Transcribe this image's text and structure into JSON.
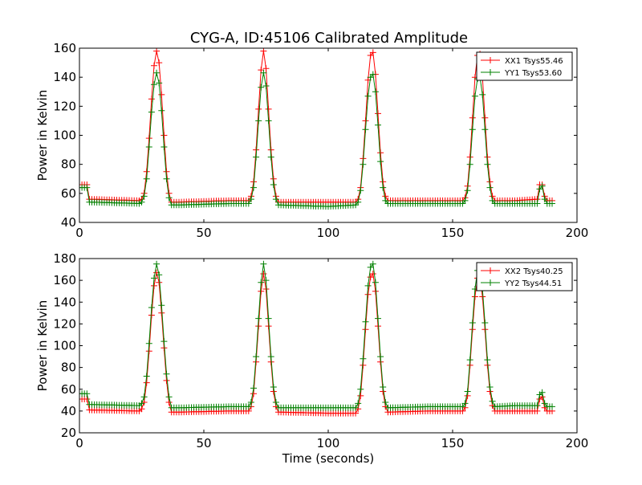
{
  "figure": {
    "title": "CYG-A, ID:45106 Calibrated Amplitude"
  },
  "chart_data": [
    {
      "type": "line",
      "title": "CYG-A, ID:45106 Calibrated Amplitude",
      "xlabel": "",
      "ylabel": "Power in Kelvin",
      "xlim": [
        0,
        200
      ],
      "ylim": [
        40,
        160
      ],
      "xticks": [
        0,
        50,
        100,
        150,
        200
      ],
      "yticks": [
        40,
        60,
        80,
        100,
        120,
        140,
        160
      ],
      "grid": false,
      "legend_position": "top-right",
      "marker": "+",
      "x_range": [
        0,
        190
      ],
      "x_step": 1,
      "series": [
        {
          "name": "XX1 Tsys55.46",
          "color": "#ff0000",
          "keypoints": [
            [
              0,
              66
            ],
            [
              3,
              66
            ],
            [
              4,
              56
            ],
            [
              24,
              55
            ],
            [
              25,
              56
            ],
            [
              26,
              60
            ],
            [
              27,
              75
            ],
            [
              28,
              98
            ],
            [
              29,
              125
            ],
            [
              30,
              148
            ],
            [
              31,
              158
            ],
            [
              32,
              150
            ],
            [
              33,
              128
            ],
            [
              34,
              100
            ],
            [
              35,
              75
            ],
            [
              36,
              60
            ],
            [
              37,
              54
            ],
            [
              40,
              54
            ],
            [
              60,
              55
            ],
            [
              68,
              55
            ],
            [
              69,
              58
            ],
            [
              70,
              68
            ],
            [
              71,
              90
            ],
            [
              72,
              118
            ],
            [
              73,
              145
            ],
            [
              74,
              158
            ],
            [
              75,
              146
            ],
            [
              76,
              118
            ],
            [
              77,
              90
            ],
            [
              78,
              70
            ],
            [
              79,
              58
            ],
            [
              80,
              54
            ],
            [
              100,
              54
            ],
            [
              111,
              54
            ],
            [
              112,
              56
            ],
            [
              113,
              64
            ],
            [
              114,
              84
            ],
            [
              115,
              110
            ],
            [
              116,
              138
            ],
            [
              117,
              155
            ],
            [
              118,
              157
            ],
            [
              119,
              142
            ],
            [
              120,
              115
            ],
            [
              121,
              88
            ],
            [
              122,
              68
            ],
            [
              123,
              58
            ],
            [
              124,
              55
            ],
            [
              140,
              55
            ],
            [
              154,
              55
            ],
            [
              155,
              57
            ],
            [
              156,
              65
            ],
            [
              157,
              85
            ],
            [
              158,
              112
            ],
            [
              159,
              140
            ],
            [
              160,
              155
            ],
            [
              161,
              156
            ],
            [
              162,
              140
            ],
            [
              163,
              112
            ],
            [
              164,
              85
            ],
            [
              165,
              68
            ],
            [
              166,
              58
            ],
            [
              167,
              55
            ],
            [
              175,
              55
            ],
            [
              184,
              56
            ],
            [
              185,
              66
            ],
            [
              186,
              66
            ],
            [
              187,
              58
            ],
            [
              188,
              55
            ],
            [
              190,
              55
            ]
          ]
        },
        {
          "name": "YY1 Tsys53.60",
          "color": "#008000",
          "keypoints": [
            [
              0,
              64
            ],
            [
              3,
              64
            ],
            [
              4,
              54
            ],
            [
              24,
              53
            ],
            [
              25,
              54
            ],
            [
              26,
              58
            ],
            [
              27,
              70
            ],
            [
              28,
              92
            ],
            [
              29,
              116
            ],
            [
              30,
              135
            ],
            [
              31,
              143
            ],
            [
              32,
              136
            ],
            [
              33,
              117
            ],
            [
              34,
              92
            ],
            [
              35,
              70
            ],
            [
              36,
              57
            ],
            [
              37,
              52
            ],
            [
              40,
              52
            ],
            [
              60,
              53
            ],
            [
              68,
              53
            ],
            [
              69,
              56
            ],
            [
              70,
              64
            ],
            [
              71,
              85
            ],
            [
              72,
              110
            ],
            [
              73,
              133
            ],
            [
              74,
              143
            ],
            [
              75,
              134
            ],
            [
              76,
              110
            ],
            [
              77,
              85
            ],
            [
              78,
              66
            ],
            [
              79,
              56
            ],
            [
              80,
              52
            ],
            [
              100,
              51
            ],
            [
              111,
              52
            ],
            [
              112,
              54
            ],
            [
              113,
              62
            ],
            [
              114,
              80
            ],
            [
              115,
              104
            ],
            [
              116,
              127
            ],
            [
              117,
              140
            ],
            [
              118,
              142
            ],
            [
              119,
              130
            ],
            [
              120,
              107
            ],
            [
              121,
              82
            ],
            [
              122,
              64
            ],
            [
              123,
              55
            ],
            [
              124,
              53
            ],
            [
              140,
              53
            ],
            [
              154,
              53
            ],
            [
              155,
              55
            ],
            [
              156,
              62
            ],
            [
              157,
              80
            ],
            [
              158,
              104
            ],
            [
              159,
              127
            ],
            [
              160,
              139
            ],
            [
              161,
              140
            ],
            [
              162,
              128
            ],
            [
              163,
              104
            ],
            [
              164,
              80
            ],
            [
              165,
              64
            ],
            [
              166,
              55
            ],
            [
              167,
              53
            ],
            [
              175,
              53
            ],
            [
              184,
              53
            ],
            [
              185,
              63
            ],
            [
              186,
              65
            ],
            [
              187,
              56
            ],
            [
              188,
              53
            ],
            [
              190,
              53
            ]
          ]
        }
      ]
    },
    {
      "type": "line",
      "title": "",
      "xlabel": "Time (seconds)",
      "ylabel": "Power in Kelvin",
      "xlim": [
        0,
        200
      ],
      "ylim": [
        20,
        180
      ],
      "xticks": [
        0,
        50,
        100,
        150,
        200
      ],
      "yticks": [
        20,
        40,
        60,
        80,
        100,
        120,
        140,
        160,
        180
      ],
      "grid": false,
      "legend_position": "top-right",
      "marker": "+",
      "x_range": [
        0,
        190
      ],
      "x_step": 1,
      "series": [
        {
          "name": "XX2 Tsys40.25",
          "color": "#ff0000",
          "keypoints": [
            [
              0,
              51
            ],
            [
              3,
              51
            ],
            [
              4,
              41
            ],
            [
              24,
              40
            ],
            [
              25,
              42
            ],
            [
              26,
              48
            ],
            [
              27,
              66
            ],
            [
              28,
              95
            ],
            [
              29,
              128
            ],
            [
              30,
              155
            ],
            [
              31,
              167
            ],
            [
              32,
              158
            ],
            [
              33,
              130
            ],
            [
              34,
              98
            ],
            [
              35,
              68
            ],
            [
              36,
              48
            ],
            [
              37,
              39
            ],
            [
              40,
              39
            ],
            [
              60,
              40
            ],
            [
              68,
              40
            ],
            [
              69,
              44
            ],
            [
              70,
              56
            ],
            [
              71,
              85
            ],
            [
              72,
              118
            ],
            [
              73,
              150
            ],
            [
              74,
              166
            ],
            [
              75,
              152
            ],
            [
              76,
              118
            ],
            [
              77,
              85
            ],
            [
              78,
              58
            ],
            [
              79,
              44
            ],
            [
              80,
              39
            ],
            [
              100,
              38
            ],
            [
              111,
              38
            ],
            [
              112,
              42
            ],
            [
              113,
              54
            ],
            [
              114,
              82
            ],
            [
              115,
              115
            ],
            [
              116,
              147
            ],
            [
              117,
              163
            ],
            [
              118,
              166
            ],
            [
              119,
              150
            ],
            [
              120,
              118
            ],
            [
              121,
              85
            ],
            [
              122,
              58
            ],
            [
              123,
              44
            ],
            [
              124,
              39
            ],
            [
              140,
              40
            ],
            [
              154,
              40
            ],
            [
              155,
              43
            ],
            [
              156,
              54
            ],
            [
              157,
              82
            ],
            [
              158,
              115
            ],
            [
              159,
              145
            ],
            [
              160,
              162
            ],
            [
              161,
              162
            ],
            [
              162,
              145
            ],
            [
              163,
              115
            ],
            [
              164,
              82
            ],
            [
              165,
              58
            ],
            [
              166,
              45
            ],
            [
              167,
              40
            ],
            [
              175,
              40
            ],
            [
              184,
              40
            ],
            [
              185,
              51
            ],
            [
              186,
              53
            ],
            [
              187,
              43
            ],
            [
              188,
              40
            ],
            [
              190,
              40
            ]
          ]
        },
        {
          "name": "YY2 Tsys44.51",
          "color": "#008000",
          "keypoints": [
            [
              0,
              56
            ],
            [
              3,
              56
            ],
            [
              4,
              46
            ],
            [
              24,
              45
            ],
            [
              25,
              47
            ],
            [
              26,
              53
            ],
            [
              27,
              72
            ],
            [
              28,
              102
            ],
            [
              29,
              135
            ],
            [
              30,
              162
            ],
            [
              31,
              175
            ],
            [
              32,
              165
            ],
            [
              33,
              137
            ],
            [
              34,
              104
            ],
            [
              35,
              74
            ],
            [
              36,
              53
            ],
            [
              37,
              43
            ],
            [
              40,
              43
            ],
            [
              60,
              44
            ],
            [
              68,
              44
            ],
            [
              69,
              48
            ],
            [
              70,
              61
            ],
            [
              71,
              90
            ],
            [
              72,
              125
            ],
            [
              73,
              158
            ],
            [
              74,
              175
            ],
            [
              75,
              160
            ],
            [
              76,
              125
            ],
            [
              77,
              90
            ],
            [
              78,
              62
            ],
            [
              79,
              48
            ],
            [
              80,
              43
            ],
            [
              100,
              43
            ],
            [
              111,
              43
            ],
            [
              112,
              47
            ],
            [
              113,
              60
            ],
            [
              114,
              88
            ],
            [
              115,
              122
            ],
            [
              116,
              155
            ],
            [
              117,
              172
            ],
            [
              118,
              175
            ],
            [
              119,
              158
            ],
            [
              120,
              125
            ],
            [
              121,
              90
            ],
            [
              122,
              62
            ],
            [
              123,
              48
            ],
            [
              124,
              43
            ],
            [
              140,
              44
            ],
            [
              154,
              44
            ],
            [
              155,
              47
            ],
            [
              156,
              58
            ],
            [
              157,
              87
            ],
            [
              158,
              121
            ],
            [
              159,
              152
            ],
            [
              160,
              169
            ],
            [
              161,
              170
            ],
            [
              162,
              152
            ],
            [
              163,
              121
            ],
            [
              164,
              87
            ],
            [
              165,
              62
            ],
            [
              166,
              49
            ],
            [
              167,
              44
            ],
            [
              175,
              45
            ],
            [
              184,
              45
            ],
            [
              185,
              55
            ],
            [
              186,
              57
            ],
            [
              187,
              47
            ],
            [
              188,
              44
            ],
            [
              190,
              44
            ]
          ]
        }
      ]
    }
  ]
}
